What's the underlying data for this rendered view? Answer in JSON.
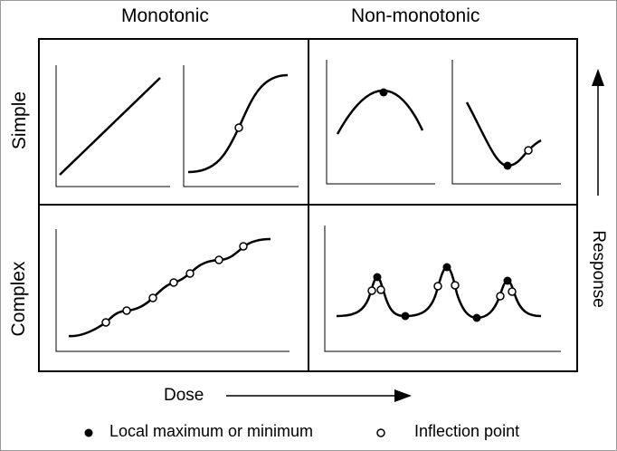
{
  "columns": {
    "left": "Monotonic",
    "right": "Non-monotonic"
  },
  "rows": {
    "top": "Simple",
    "bottom": "Complex"
  },
  "axes": {
    "x_label": "Dose",
    "y_label": "Response"
  },
  "legend": {
    "maximum_minimum": "Local maximum or minimum",
    "inflection": "Inflection point"
  },
  "colors": {
    "line": "#000000",
    "background": "#ffffff",
    "frame": "#9a9a9a"
  }
}
